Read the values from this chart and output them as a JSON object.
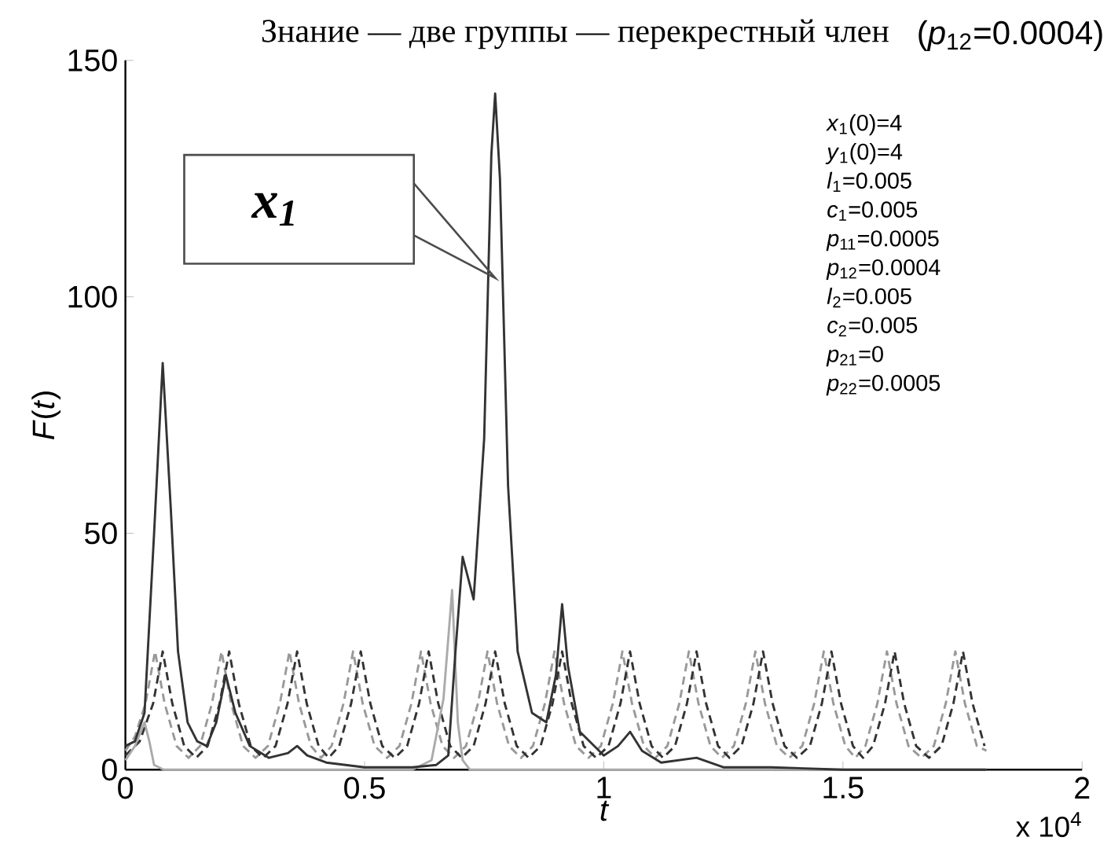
{
  "chart_data": {
    "type": "line",
    "title": "Знание — две группы — перекрестный член",
    "subtitle": "(*p*$_{12}$=0.0004)",
    "xlabel": "t",
    "ylabel": "*F*(*t*)",
    "xlim": [
      0,
      2
    ],
    "ylim": [
      0,
      150
    ],
    "xticks": [
      0,
      0.5,
      1,
      1.5,
      2
    ],
    "yticks": [
      0,
      50,
      100,
      150
    ],
    "grid": false,
    "marker": "none",
    "annotations": [
      "x$_{1}$",
      "x 10$^{4}$",
      "*x*$_{1}$(0)=4",
      "*y*$_{1}$(0)=4",
      "*l*$_{1}$=0.005",
      "*c*$_{1}$=0.005",
      "*p*$_{11}$=0.0005",
      "*p*$_{12}$=0.0004",
      "*l*$_{2}$=0.005",
      "*c*$_{2}$=0.005",
      "*p*$_{21}$=0",
      "*p*$_{22}$=0.0005"
    ],
    "series": [
      {
        "color": "#999999",
        "line_style": "dashed",
        "x": [
          0,
          0.02,
          0.042,
          0.062,
          0.082,
          0.107,
          0.132,
          0.156,
          0.181,
          0.201,
          0.221,
          0.246,
          0.272,
          0.298,
          0.323,
          0.343,
          0.363,
          0.388,
          0.409,
          0.431,
          0.456,
          0.476,
          0.496,
          0.521,
          0.547,
          0.573,
          0.598,
          0.618,
          0.638,
          0.663,
          0.687,
          0.712,
          0.737,
          0.757,
          0.777,
          0.802,
          0.827,
          0.852,
          0.877,
          0.897,
          0.917,
          0.942,
          0.968,
          0.994,
          1.019,
          1.039,
          1.059,
          1.084,
          1.108,
          1.133,
          1.158,
          1.178,
          1.198,
          1.223,
          1.247,
          1.272,
          1.297,
          1.317,
          1.337,
          1.362,
          1.388,
          1.415,
          1.44,
          1.46,
          1.48,
          1.505,
          1.526,
          1.547,
          1.572,
          1.592,
          1.612,
          1.637,
          1.664,
          1.69,
          1.715,
          1.735,
          1.755,
          1.78,
          1.8
        ],
        "values": [
          4,
          7,
          14,
          25,
          14,
          5,
          2.5,
          5,
          14,
          25,
          14,
          5,
          2.5,
          5,
          14,
          25,
          14,
          5,
          2.5,
          5,
          14,
          25,
          14,
          5,
          2.5,
          5,
          14,
          25,
          14,
          5,
          2.5,
          5,
          14,
          25,
          14,
          5,
          2.5,
          5,
          14,
          25,
          14,
          5,
          2.5,
          5,
          14,
          25,
          14,
          5,
          2.5,
          5,
          14,
          25,
          14,
          5,
          2.5,
          5,
          14,
          25,
          14,
          5,
          2.5,
          5,
          14,
          25,
          14,
          5,
          2.5,
          5,
          14,
          25,
          14,
          5,
          2.5,
          5,
          14,
          25,
          14,
          5,
          4
        ]
      },
      {
        "color": "#333333",
        "line_style": "dashed",
        "x": [
          0,
          0.03,
          0.058,
          0.078,
          0.098,
          0.123,
          0.148,
          0.172,
          0.197,
          0.217,
          0.237,
          0.262,
          0.288,
          0.314,
          0.339,
          0.359,
          0.379,
          0.404,
          0.425,
          0.447,
          0.472,
          0.492,
          0.512,
          0.537,
          0.563,
          0.589,
          0.614,
          0.634,
          0.654,
          0.679,
          0.703,
          0.728,
          0.753,
          0.773,
          0.793,
          0.818,
          0.843,
          0.868,
          0.893,
          0.913,
          0.933,
          0.958,
          0.984,
          1.01,
          1.035,
          1.055,
          1.075,
          1.1,
          1.124,
          1.149,
          1.174,
          1.194,
          1.214,
          1.239,
          1.263,
          1.288,
          1.313,
          1.333,
          1.353,
          1.378,
          1.404,
          1.431,
          1.456,
          1.476,
          1.496,
          1.521,
          1.542,
          1.563,
          1.588,
          1.608,
          1.628,
          1.653,
          1.68,
          1.706,
          1.731,
          1.751,
          1.771,
          1.796
        ],
        "values": [
          3,
          6,
          14,
          25,
          14,
          5,
          2.5,
          5,
          14,
          25,
          14,
          5,
          2.5,
          5,
          14,
          25,
          14,
          5,
          2.5,
          5,
          14,
          25,
          14,
          5,
          2.5,
          5,
          14,
          25,
          14,
          5,
          2.5,
          5,
          14,
          25,
          14,
          5,
          2.5,
          5,
          14,
          25,
          14,
          5,
          2.5,
          5,
          14,
          25,
          14,
          5,
          2.5,
          5,
          14,
          25,
          14,
          5,
          2.5,
          5,
          14,
          25,
          14,
          5,
          2.5,
          5,
          14,
          25,
          14,
          5,
          2.5,
          5,
          14,
          25,
          14,
          5,
          2.5,
          5,
          14,
          25,
          14,
          5
        ]
      },
      {
        "color": "#aaaaaa",
        "line_style": "solid",
        "x": [
          0,
          0.02,
          0.04,
          0.05,
          0.06,
          0.08,
          0.6,
          0.64,
          0.665,
          0.683,
          0.695,
          0.705,
          0.72,
          1.8
        ],
        "values": [
          2,
          5,
          10,
          6,
          1,
          0,
          0,
          2,
          15,
          38,
          10,
          2,
          0,
          0
        ]
      },
      {
        "color": "#333333",
        "line_style": "solid",
        "x": [
          0,
          0.02,
          0.04,
          0.06,
          0.078,
          0.095,
          0.11,
          0.13,
          0.15,
          0.17,
          0.19,
          0.21,
          0.23,
          0.26,
          0.3,
          0.34,
          0.359,
          0.38,
          0.42,
          0.5,
          0.6,
          0.65,
          0.675,
          0.69,
          0.705,
          0.728,
          0.75,
          0.765,
          0.773,
          0.783,
          0.8,
          0.82,
          0.85,
          0.88,
          0.9,
          0.913,
          0.925,
          0.95,
          1.0,
          1.03,
          1.055,
          1.08,
          1.12,
          1.194,
          1.25,
          1.35,
          1.5,
          1.8
        ],
        "values": [
          5,
          6,
          12,
          50,
          86,
          55,
          25,
          10,
          6,
          5,
          10,
          20,
          12,
          5,
          2.5,
          3.5,
          5,
          3,
          1.5,
          0.5,
          0.5,
          1,
          3,
          25,
          45,
          36,
          70,
          130,
          143,
          125,
          60,
          25,
          12,
          10,
          20,
          35,
          22,
          8,
          3,
          5,
          8,
          4,
          1.5,
          2.5,
          0.5,
          0.5,
          0,
          0
        ]
      }
    ]
  }
}
